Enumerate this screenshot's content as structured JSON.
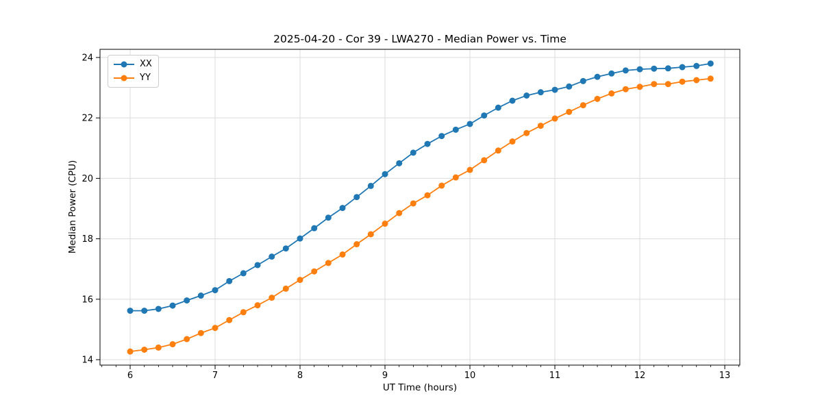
{
  "page": {
    "background": "#ffffff"
  },
  "chart_data": {
    "type": "line",
    "title": "2025-04-20 - Cor 39 - LWA270 - Median Power vs. Time",
    "xlabel": "UT Time (hours)",
    "ylabel": "Median Power (CPU)",
    "xlim": [
      5.645,
      13.177
    ],
    "ylim": [
      13.82,
      24.27
    ],
    "xticks": [
      6,
      7,
      8,
      9,
      10,
      11,
      12,
      13
    ],
    "yticks": [
      14,
      16,
      18,
      20,
      22,
      24
    ],
    "x_minor_step": 0.1667,
    "grid": true,
    "grid_color": "#dcdcdc",
    "legend_position": "upper left",
    "x": [
      6.0,
      6.167,
      6.333,
      6.5,
      6.667,
      6.833,
      7.0,
      7.167,
      7.333,
      7.5,
      7.667,
      7.833,
      8.0,
      8.167,
      8.333,
      8.5,
      8.667,
      8.833,
      9.0,
      9.167,
      9.333,
      9.5,
      9.667,
      9.833,
      10.0,
      10.167,
      10.333,
      10.5,
      10.667,
      10.833,
      11.0,
      11.167,
      11.333,
      11.5,
      11.667,
      11.833,
      12.0,
      12.167,
      12.333,
      12.5,
      12.667,
      12.833
    ],
    "series": [
      {
        "name": "XX",
        "color": "#1f77b4",
        "marker": "circle",
        "values": [
          15.62,
          15.62,
          15.68,
          15.79,
          15.96,
          16.12,
          16.3,
          16.6,
          16.86,
          17.13,
          17.41,
          17.68,
          18.01,
          18.35,
          18.7,
          19.02,
          19.38,
          19.75,
          20.14,
          20.5,
          20.85,
          21.14,
          21.4,
          21.61,
          21.8,
          22.08,
          22.34,
          22.57,
          22.74,
          22.85,
          22.93,
          23.04,
          23.22,
          23.36,
          23.47,
          23.57,
          23.61,
          23.63,
          23.64,
          23.68,
          23.72,
          23.8
        ]
      },
      {
        "name": "YY",
        "color": "#ff7f0e",
        "marker": "circle",
        "values": [
          14.27,
          14.33,
          14.4,
          14.51,
          14.68,
          14.88,
          15.05,
          15.31,
          15.57,
          15.8,
          16.05,
          16.35,
          16.64,
          16.92,
          17.2,
          17.48,
          17.82,
          18.15,
          18.5,
          18.85,
          19.17,
          19.44,
          19.76,
          20.03,
          20.28,
          20.6,
          20.92,
          21.22,
          21.5,
          21.74,
          21.98,
          22.2,
          22.42,
          22.63,
          22.81,
          22.95,
          23.03,
          23.12,
          23.12,
          23.2,
          23.25,
          23.3
        ]
      }
    ]
  }
}
